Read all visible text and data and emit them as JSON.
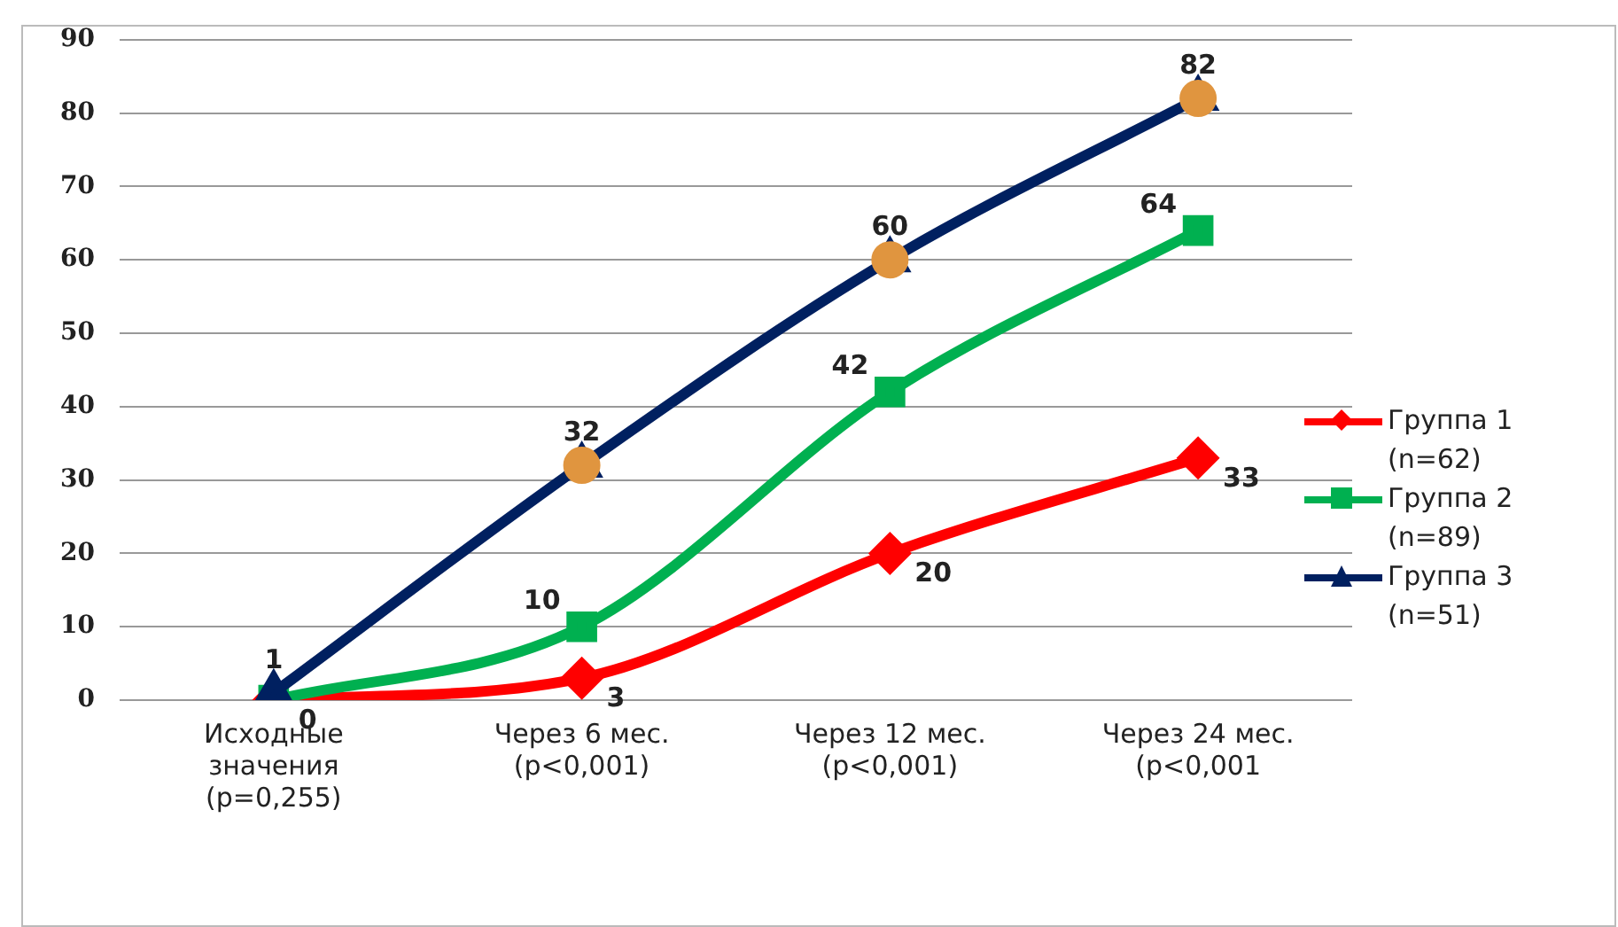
{
  "chart_data": {
    "type": "line",
    "categories": [
      "Исходные\nзначения\n(p=0,255)",
      "Через 6 мес.\n(p<0,001)",
      "Через 12 мес.\n(p<0,001)",
      "Через 24 мес.\n(p<0,001"
    ],
    "series": [
      {
        "name": "Группа 1\n(n=62)",
        "color": "#ff0000",
        "marker": "diamond",
        "values": [
          0,
          3,
          20,
          33
        ],
        "value_labels": [
          "0",
          "3",
          "20",
          "33"
        ]
      },
      {
        "name": "Группа 2\n(n=89)",
        "color": "#00b050",
        "marker": "square",
        "values": [
          0,
          10,
          42,
          64
        ],
        "value_labels": [
          null,
          "10",
          "42",
          "64"
        ]
      },
      {
        "name": "Группа 3\n(n=51)",
        "color": "#002060",
        "marker": "triangle",
        "values": [
          1,
          32,
          60,
          82
        ],
        "value_labels": [
          "1",
          "32",
          "60",
          "82"
        ]
      },
      {
        "type": "scatter",
        "color": "#e0953f",
        "marker": "circle",
        "values": [
          null,
          32,
          60,
          82
        ]
      }
    ],
    "ylim": [
      0,
      90
    ],
    "yticks": [
      0,
      10,
      20,
      30,
      40,
      50,
      60,
      70,
      80,
      90
    ],
    "grid": "y",
    "legend": "right"
  }
}
